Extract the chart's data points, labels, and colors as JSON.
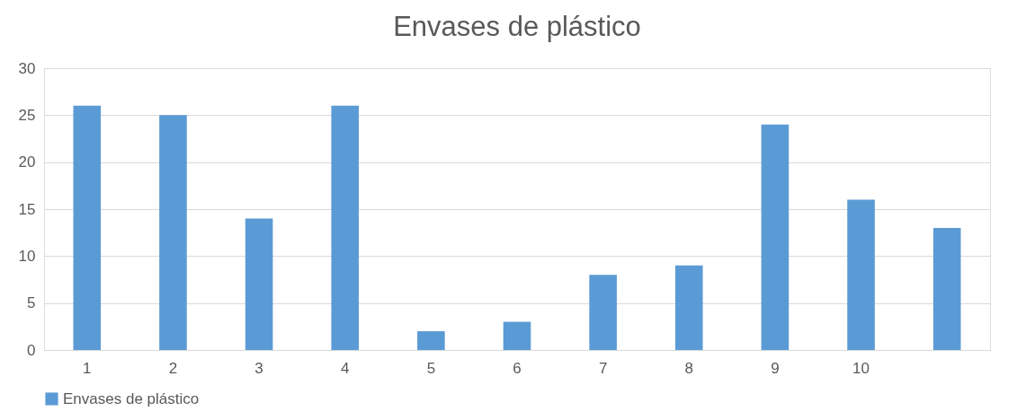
{
  "chart_data": {
    "type": "bar",
    "title": "Envases de plástico",
    "categories": [
      "1",
      "2",
      "3",
      "4",
      "5",
      "6",
      "7",
      "8",
      "9",
      "10",
      null
    ],
    "series": [
      {
        "name": "Envases de plástico",
        "color": "#5b9bd5",
        "values": [
          26,
          25,
          14,
          26,
          2,
          3,
          8,
          9,
          24,
          16,
          13
        ]
      }
    ],
    "ylim": [
      0,
      30
    ],
    "yticks": [
      0,
      5,
      10,
      15,
      20,
      25,
      30
    ],
    "grid": "y",
    "legend": "bottom"
  }
}
